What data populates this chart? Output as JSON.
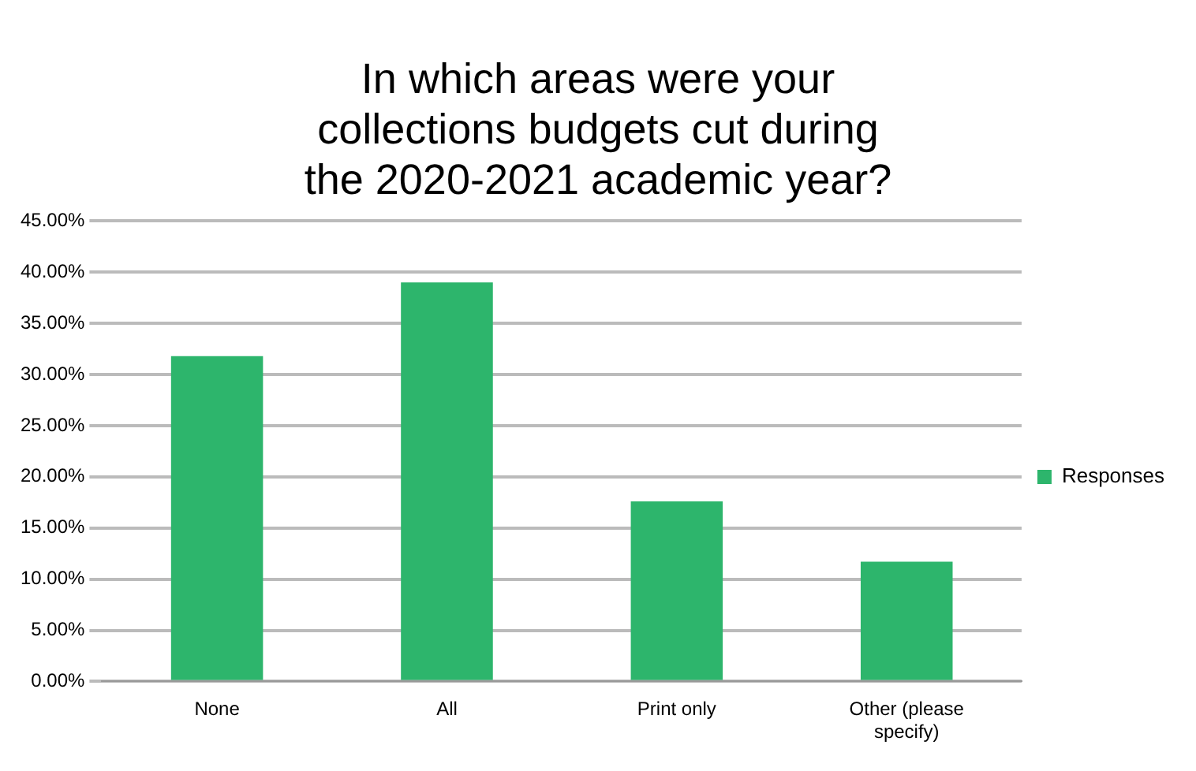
{
  "chart_data": {
    "type": "bar",
    "title": "In which areas were your collections budgets cut during the 2020-2021 academic year?",
    "categories": [
      "None",
      "All",
      "Print only",
      "Other (please specify)"
    ],
    "series": [
      {
        "name": "Responses",
        "color": "#2db56c",
        "values": [
          31.8,
          39.0,
          17.6,
          11.7
        ]
      }
    ],
    "ylim": [
      0,
      45
    ],
    "yticks": [
      {
        "value": 0,
        "label": "0.00%"
      },
      {
        "value": 5,
        "label": "5.00%"
      },
      {
        "value": 10,
        "label": "10.00%"
      },
      {
        "value": 15,
        "label": "15.00%"
      },
      {
        "value": 20,
        "label": "20.00%"
      },
      {
        "value": 25,
        "label": "25.00%"
      },
      {
        "value": 30,
        "label": "30.00%"
      },
      {
        "value": 35,
        "label": "35.00%"
      },
      {
        "value": 40,
        "label": "40.00%"
      },
      {
        "value": 45,
        "label": "45.00%"
      }
    ],
    "grid": "y",
    "legend": "right"
  }
}
